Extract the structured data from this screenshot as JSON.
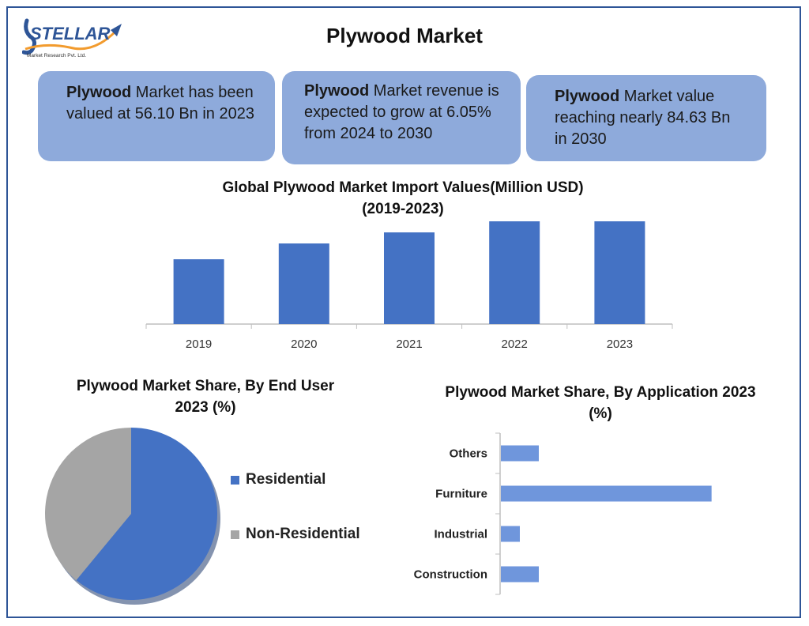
{
  "header": {
    "title": "Plywood Market",
    "logo_text": "STELLAR",
    "logo_subtext": "Market Research Pvt. Ltd."
  },
  "cards": [
    {
      "bold": "Plywood",
      "text": " Market has been valued at 56.10 Bn in 2023"
    },
    {
      "bold": "Plywood",
      "text": " Market revenue is expected to grow at 6.05% from 2024 to 2030"
    },
    {
      "bold": "Plywood",
      "text": " Market value reaching nearly 84.63 Bn in 2030"
    }
  ],
  "colors": {
    "bar": "#4472c4",
    "card": "#8eaadb",
    "pie_residential": "#4472c4",
    "pie_non_residential": "#a5a5a5",
    "hbar": "#6f96dc",
    "border": "#2e5597"
  },
  "chart_data": [
    {
      "type": "bar",
      "title": "Global Plywood Market Import Values(Million USD)",
      "subtitle": "(2019-2023)",
      "categories": [
        "2019",
        "2020",
        "2021",
        "2022",
        "2023"
      ],
      "values": [
        82,
        102,
        116,
        130,
        130
      ],
      "ylim": [
        0,
        130
      ],
      "grid": false,
      "legend": "none"
    },
    {
      "type": "pie",
      "title": "Plywood Market Share, By End User",
      "subtitle": "2023 (%)",
      "labels": [
        "Residential",
        "Non-Residential"
      ],
      "values": [
        61,
        39
      ],
      "legend": "right"
    },
    {
      "type": "bar",
      "orientation": "horizontal",
      "title": "Plywood Market Share, By Application 2023",
      "subtitle": "(%)",
      "categories": [
        "Others",
        "Furniture",
        "Industrial",
        "Construction"
      ],
      "values": [
        9,
        50,
        4.5,
        9
      ],
      "xlim": [
        0,
        60
      ],
      "grid": false,
      "legend": "none"
    }
  ]
}
